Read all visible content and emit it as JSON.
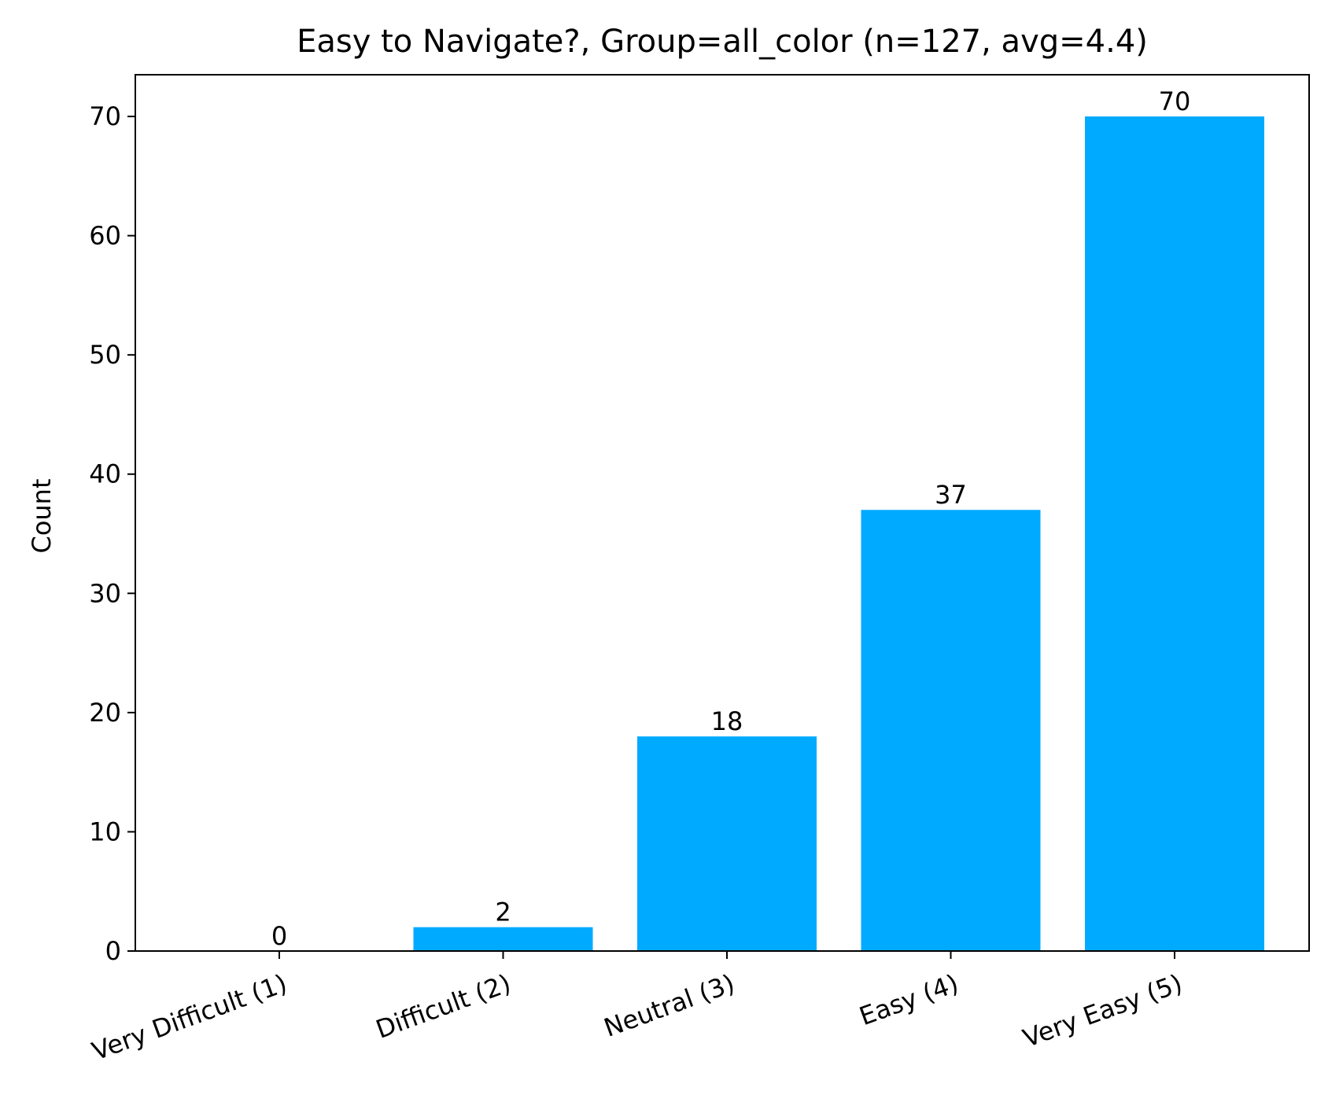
{
  "chart_data": {
    "type": "bar",
    "title": "Easy to Navigate?, Group=all_color (n=127, avg=4.4)",
    "xlabel": "",
    "ylabel": "Count",
    "categories": [
      "Very Difficult (1)",
      "Difficult (2)",
      "Neutral (3)",
      "Easy (4)",
      "Very Easy (5)"
    ],
    "values": [
      0,
      2,
      18,
      37,
      70
    ],
    "data_labels": [
      "0",
      "2",
      "18",
      "37",
      "70"
    ],
    "ylim": [
      0,
      73.5
    ],
    "yticks": [
      0,
      10,
      20,
      30,
      40,
      50,
      60,
      70
    ],
    "ytick_labels": [
      "0",
      "10",
      "20",
      "30",
      "40",
      "50",
      "60",
      "70"
    ],
    "bar_color": "#00aaff",
    "grid": false,
    "legend": "none"
  }
}
